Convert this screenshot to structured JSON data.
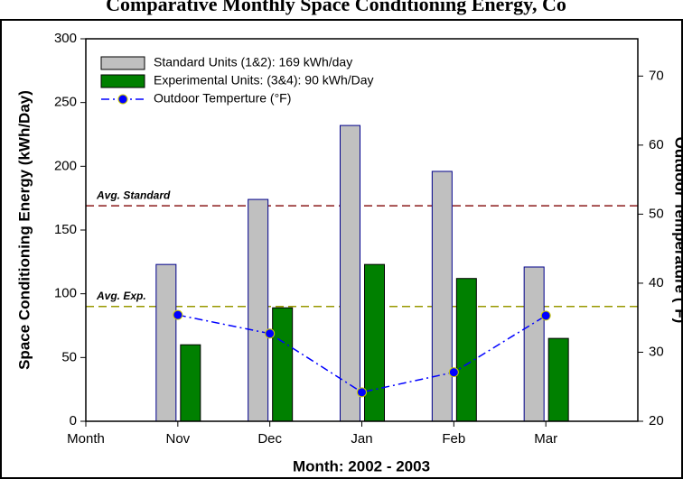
{
  "chart_data": {
    "type": "bar",
    "title": "Comparative Monthly Space Conditioning Energy, Co",
    "xlabel": "Month: 2002 - 2003",
    "ylabel": "Space Conditioning Energy (kWh/Day)",
    "y2label": "Outdoor Temperature (°F)",
    "categories": [
      "Month",
      "Nov",
      "Dec",
      "Jan",
      "Feb",
      "Mar"
    ],
    "ylim": [
      0,
      300
    ],
    "yticks": [
      0,
      50,
      100,
      150,
      200,
      250,
      300
    ],
    "y2lim": [
      20,
      75.4
    ],
    "y2ticks": [
      20,
      30,
      40,
      50,
      60,
      70
    ],
    "series": [
      {
        "name": "Standard Units (1&2): 169 kWh/day",
        "color": "#c0c0c0",
        "values": [
          null,
          123,
          174,
          232,
          196,
          121
        ]
      },
      {
        "name": "Experimental Units: (3&4): 90 kWh/Day",
        "color": "#008000",
        "values": [
          null,
          60,
          89,
          123,
          112,
          65
        ]
      },
      {
        "name": "Outdoor Temperture (°F)",
        "type": "line",
        "axis": "y2",
        "color": "#0000ff",
        "values": [
          null,
          35.4,
          32.7,
          24.2,
          27.1,
          35.3
        ]
      }
    ],
    "reference_lines": [
      {
        "label": "Avg. Standard",
        "value": 169,
        "color": "#8b1a1a"
      },
      {
        "label": "Avg. Exp.",
        "value": 90,
        "color": "#999900"
      }
    ]
  }
}
